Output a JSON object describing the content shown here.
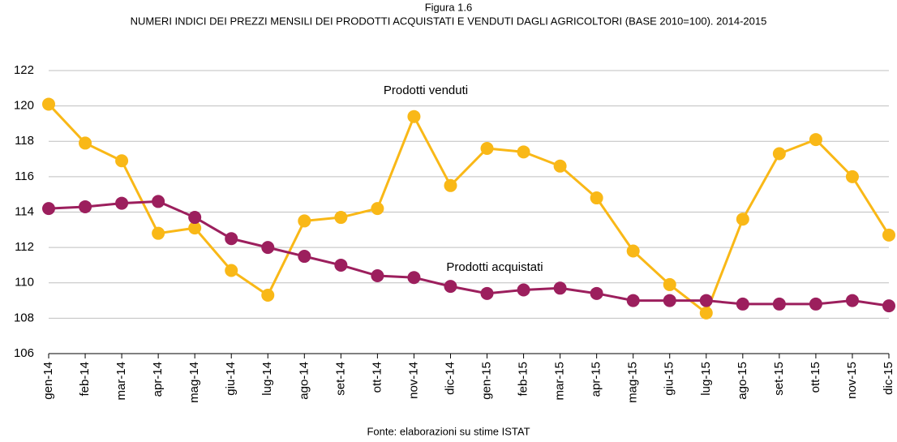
{
  "chart_data": {
    "type": "line",
    "title": "Figura 1.6",
    "subtitle": "NUMERI INDICI DEI PREZZI MENSILI DEI PRODOTTI ACQUISTATI E VENDUTI DAGLI AGRICOLTORI (BASE 2010=100). 2014-2015",
    "source": "Fonte: elaborazioni su stime ISTAT",
    "categories": [
      "gen-14",
      "feb-14",
      "mar-14",
      "apr-14",
      "mag-14",
      "giu-14",
      "lug-14",
      "ago-14",
      "set-14",
      "ott-14",
      "nov-14",
      "dic-14",
      "gen-15",
      "feb-15",
      "mar-15",
      "apr-15",
      "mag-15",
      "giu-15",
      "lug-15",
      "ago-15",
      "set-15",
      "ott-15",
      "nov-15",
      "dic-15"
    ],
    "series": [
      {
        "name": "Prodotti venduti",
        "color": "#f9b817",
        "values": [
          120.1,
          117.9,
          116.9,
          112.8,
          113.1,
          110.7,
          109.3,
          113.5,
          113.7,
          114.2,
          119.4,
          115.5,
          117.6,
          117.4,
          116.6,
          114.8,
          111.8,
          109.9,
          108.3,
          113.6,
          117.3,
          118.1,
          116.0,
          112.7
        ]
      },
      {
        "name": "Prodotti acquistati",
        "color": "#9c1f5d",
        "values": [
          114.2,
          114.3,
          114.5,
          114.6,
          113.7,
          112.5,
          112.0,
          111.5,
          111.0,
          110.4,
          110.3,
          109.8,
          109.4,
          109.6,
          109.7,
          109.4,
          109.0,
          109.0,
          109.0,
          108.8,
          108.8,
          108.8,
          109.0,
          108.7
        ]
      }
    ],
    "ylim": [
      106,
      122
    ],
    "yticks": [
      106,
      108,
      110,
      112,
      114,
      116,
      118,
      120,
      122
    ],
    "grid": true
  }
}
